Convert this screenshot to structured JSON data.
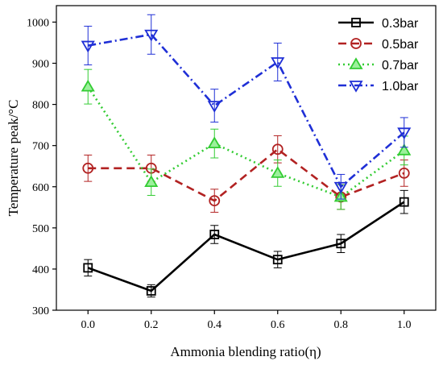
{
  "chart_data": {
    "type": "line",
    "title": "",
    "xlabel": "Ammonia blending ratio(η)",
    "ylabel": "Temperature peak/°C",
    "x": [
      0.0,
      0.2,
      0.4,
      0.6,
      0.8,
      1.0
    ],
    "x_tick_labels": [
      "0.0",
      "0.2",
      "0.4",
      "0.6",
      "0.8",
      "1.0"
    ],
    "y_ticks": [
      300,
      400,
      500,
      600,
      700,
      800,
      900,
      1000
    ],
    "xlim": [
      -0.1,
      1.1
    ],
    "ylim": [
      300,
      1040
    ],
    "grid": false,
    "legend_position": "top-right",
    "series": [
      {
        "name": "0.3bar",
        "color": "#000000",
        "marker": "square",
        "line_style": "solid",
        "values": [
          403,
          347,
          484,
          423,
          462,
          563
        ],
        "errors": [
          20,
          15,
          22,
          20,
          22,
          28
        ]
      },
      {
        "name": "0.5bar",
        "color": "#b22222",
        "marker": "circle",
        "line_style": "dashed",
        "values": [
          645,
          645,
          566,
          691,
          575,
          633
        ],
        "errors": [
          32,
          32,
          28,
          33,
          30,
          32
        ]
      },
      {
        "name": "0.7bar",
        "color": "#33cc33",
        "marker": "triangle-up",
        "line_style": "dotted",
        "values": [
          843,
          611,
          705,
          633,
          575,
          688
        ],
        "errors": [
          42,
          32,
          35,
          32,
          30,
          35
        ]
      },
      {
        "name": "1.0bar",
        "color": "#1f2fd6",
        "marker": "triangle-down",
        "line_style": "dash-dot",
        "values": [
          943,
          970,
          797,
          903,
          600,
          732
        ],
        "errors": [
          47,
          48,
          40,
          46,
          30,
          36
        ]
      }
    ]
  }
}
